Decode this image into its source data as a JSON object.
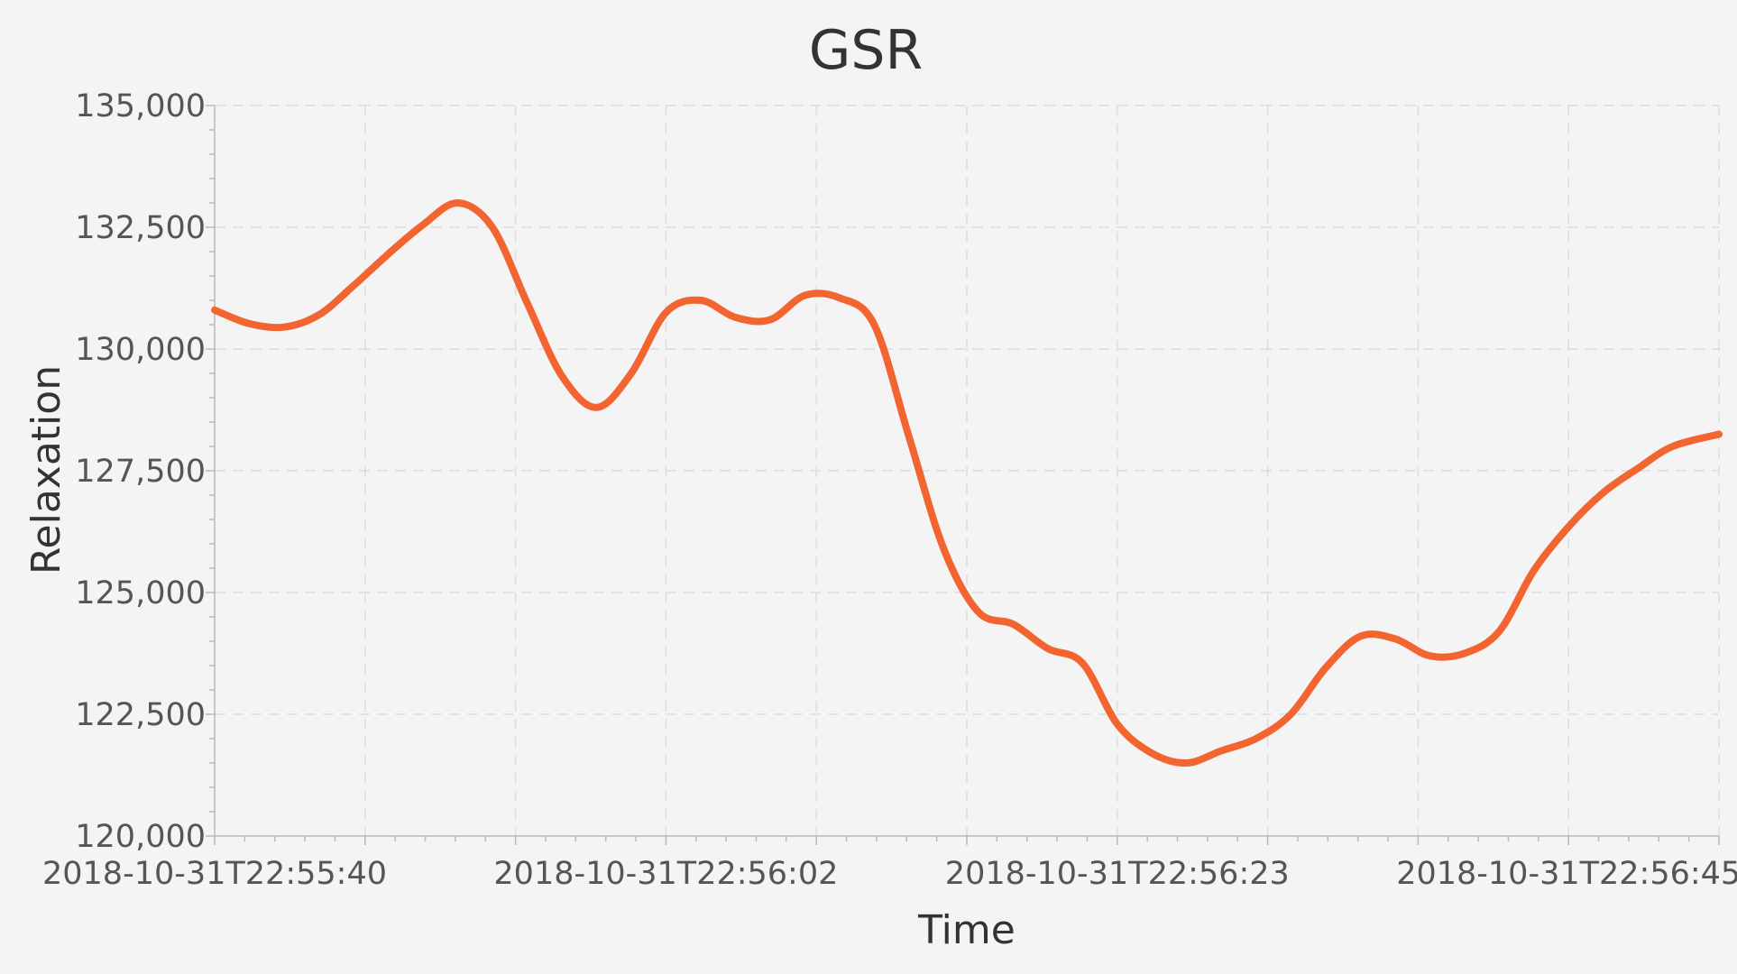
{
  "chart_data": {
    "type": "line",
    "title": "GSR",
    "xlabel": "Time",
    "ylabel": "Relaxation",
    "x_tick_labels": [
      "2018-10-31T22:55:40",
      "2018-10-31T22:56:02",
      "2018-10-31T22:56:23",
      "2018-10-31T22:56:45"
    ],
    "y_tick_labels": [
      "120,000",
      "122,500",
      "125,000",
      "127,500",
      "130,000",
      "132,500",
      "135,000"
    ],
    "y_ticks": [
      120000,
      122500,
      125000,
      127500,
      130000,
      132500,
      135000
    ],
    "ylim": [
      120000,
      135000
    ],
    "xlim_seconds": [
      0,
      65
    ],
    "grid": true,
    "legend": "none",
    "series": [
      {
        "color": "#f26430",
        "x": [
          0,
          1.5,
          3,
          4.5,
          6,
          7.5,
          9,
          10.5,
          12,
          13.5,
          15,
          16.5,
          18,
          19.5,
          21,
          22.5,
          24,
          25.5,
          27,
          28.5,
          30,
          31.5,
          33,
          34.5,
          36,
          37.5,
          39,
          40.5,
          42,
          43.5,
          45,
          46.5,
          48,
          49.5,
          51,
          52.5,
          54,
          55.5,
          57,
          58.5,
          60,
          61.5,
          63,
          65
        ],
        "values": [
          130800,
          130520,
          130450,
          130700,
          131300,
          131950,
          132550,
          133000,
          132500,
          130950,
          129450,
          128800,
          129500,
          130750,
          131000,
          130650,
          130600,
          131100,
          131050,
          130500,
          128200,
          125900,
          124600,
          124350,
          123850,
          123550,
          122300,
          121700,
          121500,
          121750,
          122000,
          122500,
          123450,
          124100,
          124050,
          123700,
          123750,
          124200,
          125450,
          126350,
          127050,
          127550,
          128000,
          128250
        ]
      }
    ]
  }
}
